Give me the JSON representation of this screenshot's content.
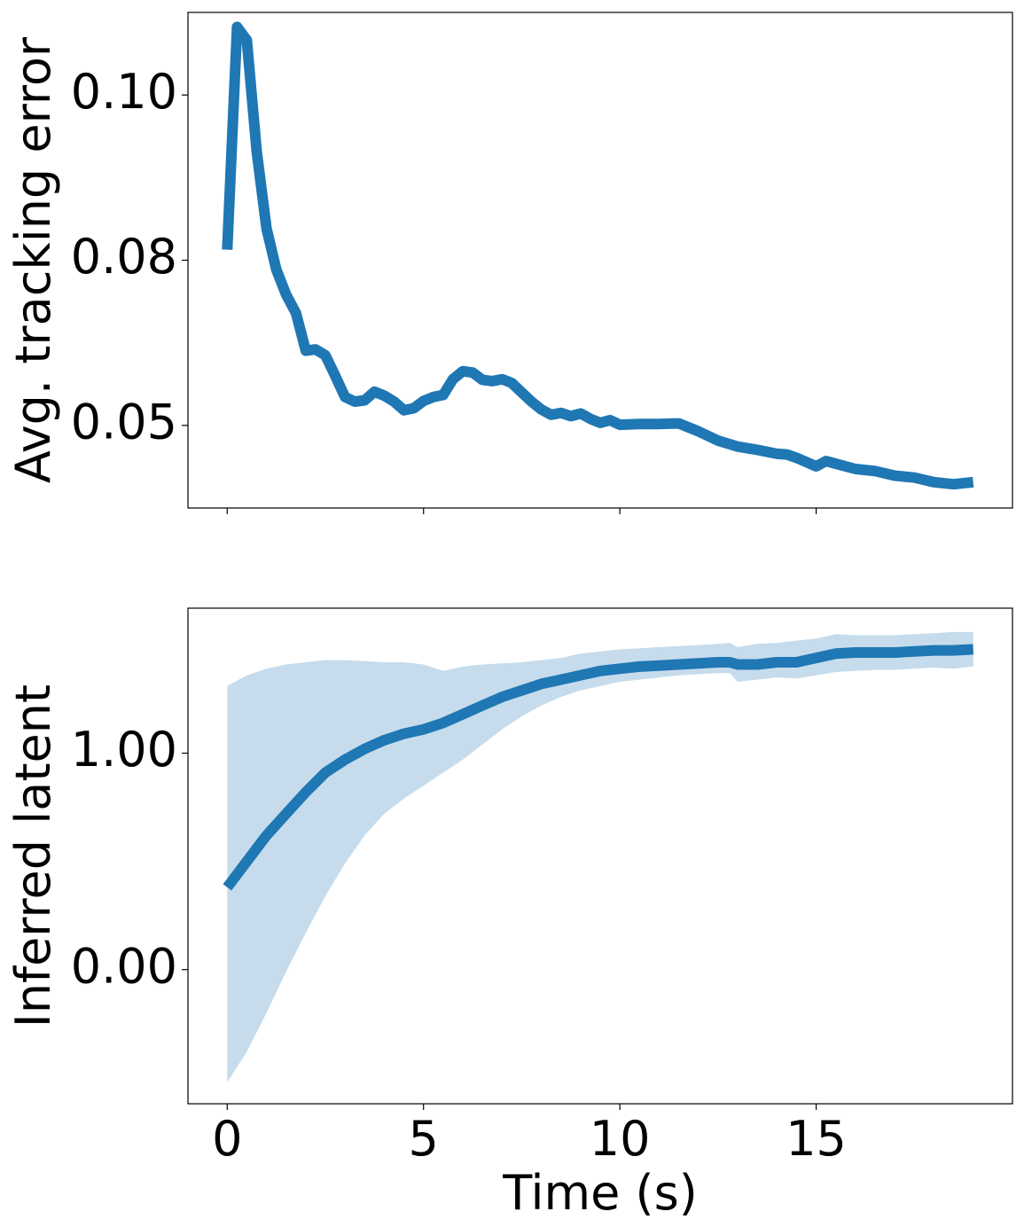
{
  "colors": {
    "line": "#1f77b4",
    "band": "#c6dcec",
    "axes": "#000000",
    "background": "#ffffff"
  },
  "chart_data": [
    {
      "type": "line",
      "xlabel": "",
      "ylabel": "Avg. tracking error",
      "xlim": [
        -1,
        20
      ],
      "ylim": [
        0.0375,
        0.1125
      ],
      "xticks": [
        0,
        5,
        10,
        15
      ],
      "xtick_labels_shown": false,
      "yticks": [
        0.05,
        0.075,
        0.1
      ],
      "ytick_labels": [
        "0.05",
        "0.08",
        "0.10"
      ],
      "grid": false,
      "series": [
        {
          "x": [
            0.0,
            0.25,
            0.5,
            0.75,
            1.0,
            1.25,
            1.5,
            1.75,
            2.0,
            2.25,
            2.5,
            2.75,
            3.0,
            3.25,
            3.5,
            3.75,
            4.0,
            4.25,
            4.5,
            4.75,
            5.0,
            5.25,
            5.5,
            5.75,
            6.0,
            6.25,
            6.5,
            6.75,
            7.0,
            7.25,
            7.5,
            7.75,
            8.0,
            8.25,
            8.5,
            8.75,
            9.0,
            9.25,
            9.5,
            9.75,
            10.0,
            10.5,
            11.0,
            11.5,
            12.0,
            12.5,
            13.0,
            13.5,
            14.0,
            14.25,
            14.5,
            15.0,
            15.25,
            15.5,
            16.0,
            16.5,
            17.0,
            17.5,
            18.0,
            18.5,
            19.0
          ],
          "values": [
            0.0766,
            0.1103,
            0.1083,
            0.0915,
            0.0798,
            0.0736,
            0.0698,
            0.067,
            0.0613,
            0.0615,
            0.0606,
            0.0575,
            0.0543,
            0.0536,
            0.0538,
            0.0551,
            0.0545,
            0.0536,
            0.0523,
            0.0526,
            0.0537,
            0.0543,
            0.0546,
            0.057,
            0.0582,
            0.058,
            0.0569,
            0.0567,
            0.057,
            0.0564,
            0.055,
            0.0536,
            0.0524,
            0.0516,
            0.0519,
            0.0514,
            0.0518,
            0.051,
            0.0504,
            0.0508,
            0.0501,
            0.0502,
            0.0502,
            0.0503,
            0.0491,
            0.0477,
            0.0468,
            0.0463,
            0.0457,
            0.0456,
            0.0451,
            0.0438,
            0.0446,
            0.0442,
            0.0434,
            0.0431,
            0.0424,
            0.0421,
            0.0414,
            0.0411,
            0.0414
          ]
        }
      ]
    },
    {
      "type": "area",
      "xlabel": "Time (s)",
      "ylabel": "Inferred latent",
      "xlim": [
        -1,
        20
      ],
      "ylim": [
        -0.62,
        1.67
      ],
      "xticks": [
        0,
        5,
        10,
        15
      ],
      "xtick_labels": [
        "0",
        "5",
        "10",
        "15"
      ],
      "yticks": [
        0.0,
        1.0
      ],
      "ytick_labels": [
        "0.00",
        "1.00"
      ],
      "grid": false,
      "series": [
        {
          "x": [
            0,
            0.5,
            1.0,
            1.5,
            2.0,
            2.5,
            3.0,
            3.5,
            4.0,
            4.5,
            5.0,
            5.5,
            6.0,
            6.5,
            7.0,
            7.5,
            8.0,
            8.5,
            9.0,
            9.5,
            10.0,
            10.5,
            11.0,
            11.5,
            12.0,
            12.5,
            12.8,
            13.0,
            13.5,
            14.0,
            14.5,
            15.0,
            15.5,
            16.0,
            16.5,
            17.0,
            17.5,
            18.0,
            18.5,
            19.0
          ],
          "values": [
            0.38,
            0.5,
            0.62,
            0.72,
            0.82,
            0.91,
            0.97,
            1.02,
            1.06,
            1.09,
            1.11,
            1.14,
            1.18,
            1.22,
            1.26,
            1.29,
            1.32,
            1.34,
            1.36,
            1.38,
            1.39,
            1.4,
            1.405,
            1.41,
            1.415,
            1.42,
            1.42,
            1.41,
            1.41,
            1.42,
            1.42,
            1.44,
            1.46,
            1.465,
            1.465,
            1.465,
            1.47,
            1.475,
            1.475,
            1.48
          ],
          "upper": [
            1.31,
            1.36,
            1.39,
            1.41,
            1.42,
            1.43,
            1.43,
            1.425,
            1.42,
            1.42,
            1.41,
            1.38,
            1.4,
            1.41,
            1.415,
            1.42,
            1.43,
            1.44,
            1.46,
            1.47,
            1.48,
            1.485,
            1.49,
            1.495,
            1.5,
            1.505,
            1.51,
            1.49,
            1.505,
            1.51,
            1.52,
            1.53,
            1.55,
            1.545,
            1.545,
            1.545,
            1.55,
            1.555,
            1.56,
            1.56
          ],
          "lower": [
            -0.52,
            -0.38,
            -0.2,
            -0.01,
            0.17,
            0.34,
            0.49,
            0.62,
            0.72,
            0.79,
            0.85,
            0.91,
            0.97,
            1.04,
            1.11,
            1.17,
            1.22,
            1.26,
            1.29,
            1.31,
            1.33,
            1.34,
            1.35,
            1.36,
            1.365,
            1.37,
            1.37,
            1.33,
            1.34,
            1.35,
            1.345,
            1.36,
            1.375,
            1.38,
            1.385,
            1.385,
            1.39,
            1.395,
            1.39,
            1.4
          ]
        }
      ]
    }
  ]
}
